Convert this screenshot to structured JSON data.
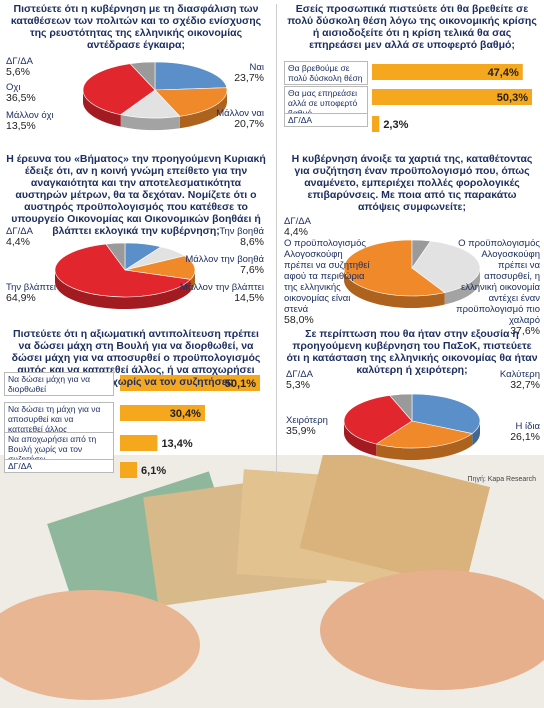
{
  "chart_data": [
    {
      "type": "pie",
      "title": "Πιστεύετε ότι η κυβέρνηση με τη διασφάλιση των καταθέσεων των πολιτών και το σχέδιο ενίσχυσης της ρευστότητας της ελληνικής οικονομίας αντέδρασε έγκαιρα;",
      "categories": [
        "Ναι",
        "Μάλλον ναι",
        "Μάλλον όχι",
        "Οχι",
        "ΔΓ/ΔΑ"
      ],
      "values": [
        23.7,
        20.7,
        13.5,
        36.5,
        5.6
      ],
      "value_labels": [
        "23,7%",
        "20,7%",
        "13,5%",
        "36,5%",
        "5,6%"
      ],
      "colors": [
        "#5b8fc9",
        "#f0892a",
        "#e2e2e2",
        "#e1262d",
        "#9a9a9a"
      ]
    },
    {
      "type": "bar",
      "title": "Εσείς προσωπικά πιστεύετε ότι θα βρεθείτε σε πολύ δύσκολη θέση λόγω της οικονομικής κρίσης ή αισιοδοξείτε ότι η κρίση τελικά θα σας επηρεάσει μεν αλλά σε υποφερτό βαθμό;",
      "categories": [
        "Θα βρεθούμε σε πολύ δύσκολη θέση",
        "Θα μας επηρεάσει αλλά σε υποφερτό βαθμό",
        "ΔΓ/ΔΑ"
      ],
      "values": [
        47.4,
        50.3,
        2.3
      ],
      "value_labels": [
        "47,4%",
        "50,3%",
        "2,3%"
      ],
      "color": "#f5a71e"
    },
    {
      "type": "pie",
      "title": "Η έρευνα του «Βήματος» την προηγούμενη Κυριακή έδειξε ότι, αν η κοινή γνώμη επείθετο για την αναγκαιότητα και την αποτελεσματικότητα αυστηρών μέτρων, θα τα δεχόταν. Νομίζετε ότι ο αυστηρός προϋπολογισμός που κατέθεσε το υπουργείο Οικονομίας και Οικονομικών βοηθάει ή βλάπτει εκλογικά την κυβέρνηση;",
      "categories": [
        "Την βοηθά",
        "Μάλλον την βοηθά",
        "Μάλλον την βλάπτει",
        "Την βλάπτει",
        "ΔΓ/ΔΑ"
      ],
      "values": [
        8.6,
        7.6,
        14.5,
        64.9,
        4.4
      ],
      "value_labels": [
        "8,6%",
        "7,6%",
        "14,5%",
        "64,9%",
        "4,4%"
      ],
      "colors": [
        "#5b8fc9",
        "#e2e2e2",
        "#f0892a",
        "#e1262d",
        "#9a9a9a"
      ]
    },
    {
      "type": "pie",
      "title": "Η κυβέρνηση άνοιξε τα χαρτιά της, καταθέτοντας για συζήτηση έναν προϋπολογισμό που, όπως αναμένετο, εμπεριέχει πολλές φορολογικές επιβαρύνσεις. Με ποια από τις παρακάτω απόψεις συμφωνείτε;",
      "categories": [
        "Ο προϋπολογισμός Αλογοσκούφη πρέπει να συζητηθεί αφού τα περιθώρια της ελληνικής οικονομίας είναι στενά",
        "Ο προϋπολογισμός Αλογοσκούφη πρέπει να αποσυρθεί, η ελληνική οικονομία αντέχει έναν προϋπολογισμό πιο χαλαρό",
        "ΔΓ/ΔΑ"
      ],
      "values": [
        58.0,
        37.6,
        4.4
      ],
      "value_labels": [
        "58,0%",
        "37,6%",
        "4,4%"
      ],
      "colors": [
        "#f0892a",
        "#e2e2e2",
        "#9a9a9a"
      ]
    },
    {
      "type": "bar",
      "title": "Πιστεύετε ότι η αξιωματική αντιπολίτευση πρέπει να δώσει μάχη στη Βουλή για να διορθωθεί, να δώσει μάχη για να αποσυρθεί ο προϋπολογισμός αυτός και να κατατεθεί άλλος, ή να αποχωρήσει από τη Βουλή χωρίς να τον συζητήσει;",
      "categories": [
        "Να δώσει μάχη για να διορθωθεί",
        "Να δώσει τη μάχη για να αποσυρθεί και να κατατεθεί άλλος",
        "Να αποχωρήσει από τη Βουλή χωρίς να τον συζητήσει",
        "ΔΓ/ΔΑ"
      ],
      "values": [
        50.1,
        30.4,
        13.4,
        6.1
      ],
      "value_labels": [
        "50,1%",
        "30,4%",
        "13,4%",
        "6,1%"
      ],
      "color": "#f5a71e"
    },
    {
      "type": "pie",
      "title": "Σε περίπτωση που θα ήταν στην εξουσία η προηγούμενη κυβέρνηση του ΠαΣοΚ, πιστεύετε ότι η κατάσταση της ελληνικής οικονομίας θα ήταν καλύτερη ή χειρότερη;",
      "categories": [
        "Καλύτερη",
        "Η ίδια",
        "Χειρότερη",
        "ΔΓ/ΔΑ"
      ],
      "values": [
        32.7,
        26.1,
        35.9,
        5.3
      ],
      "value_labels": [
        "32,7%",
        "26,1%",
        "35,9%",
        "5,3%"
      ],
      "colors": [
        "#5b8fc9",
        "#f0892a",
        "#e1262d",
        "#9a9a9a"
      ],
      "source": "Πηγή: Kapa Research"
    }
  ]
}
